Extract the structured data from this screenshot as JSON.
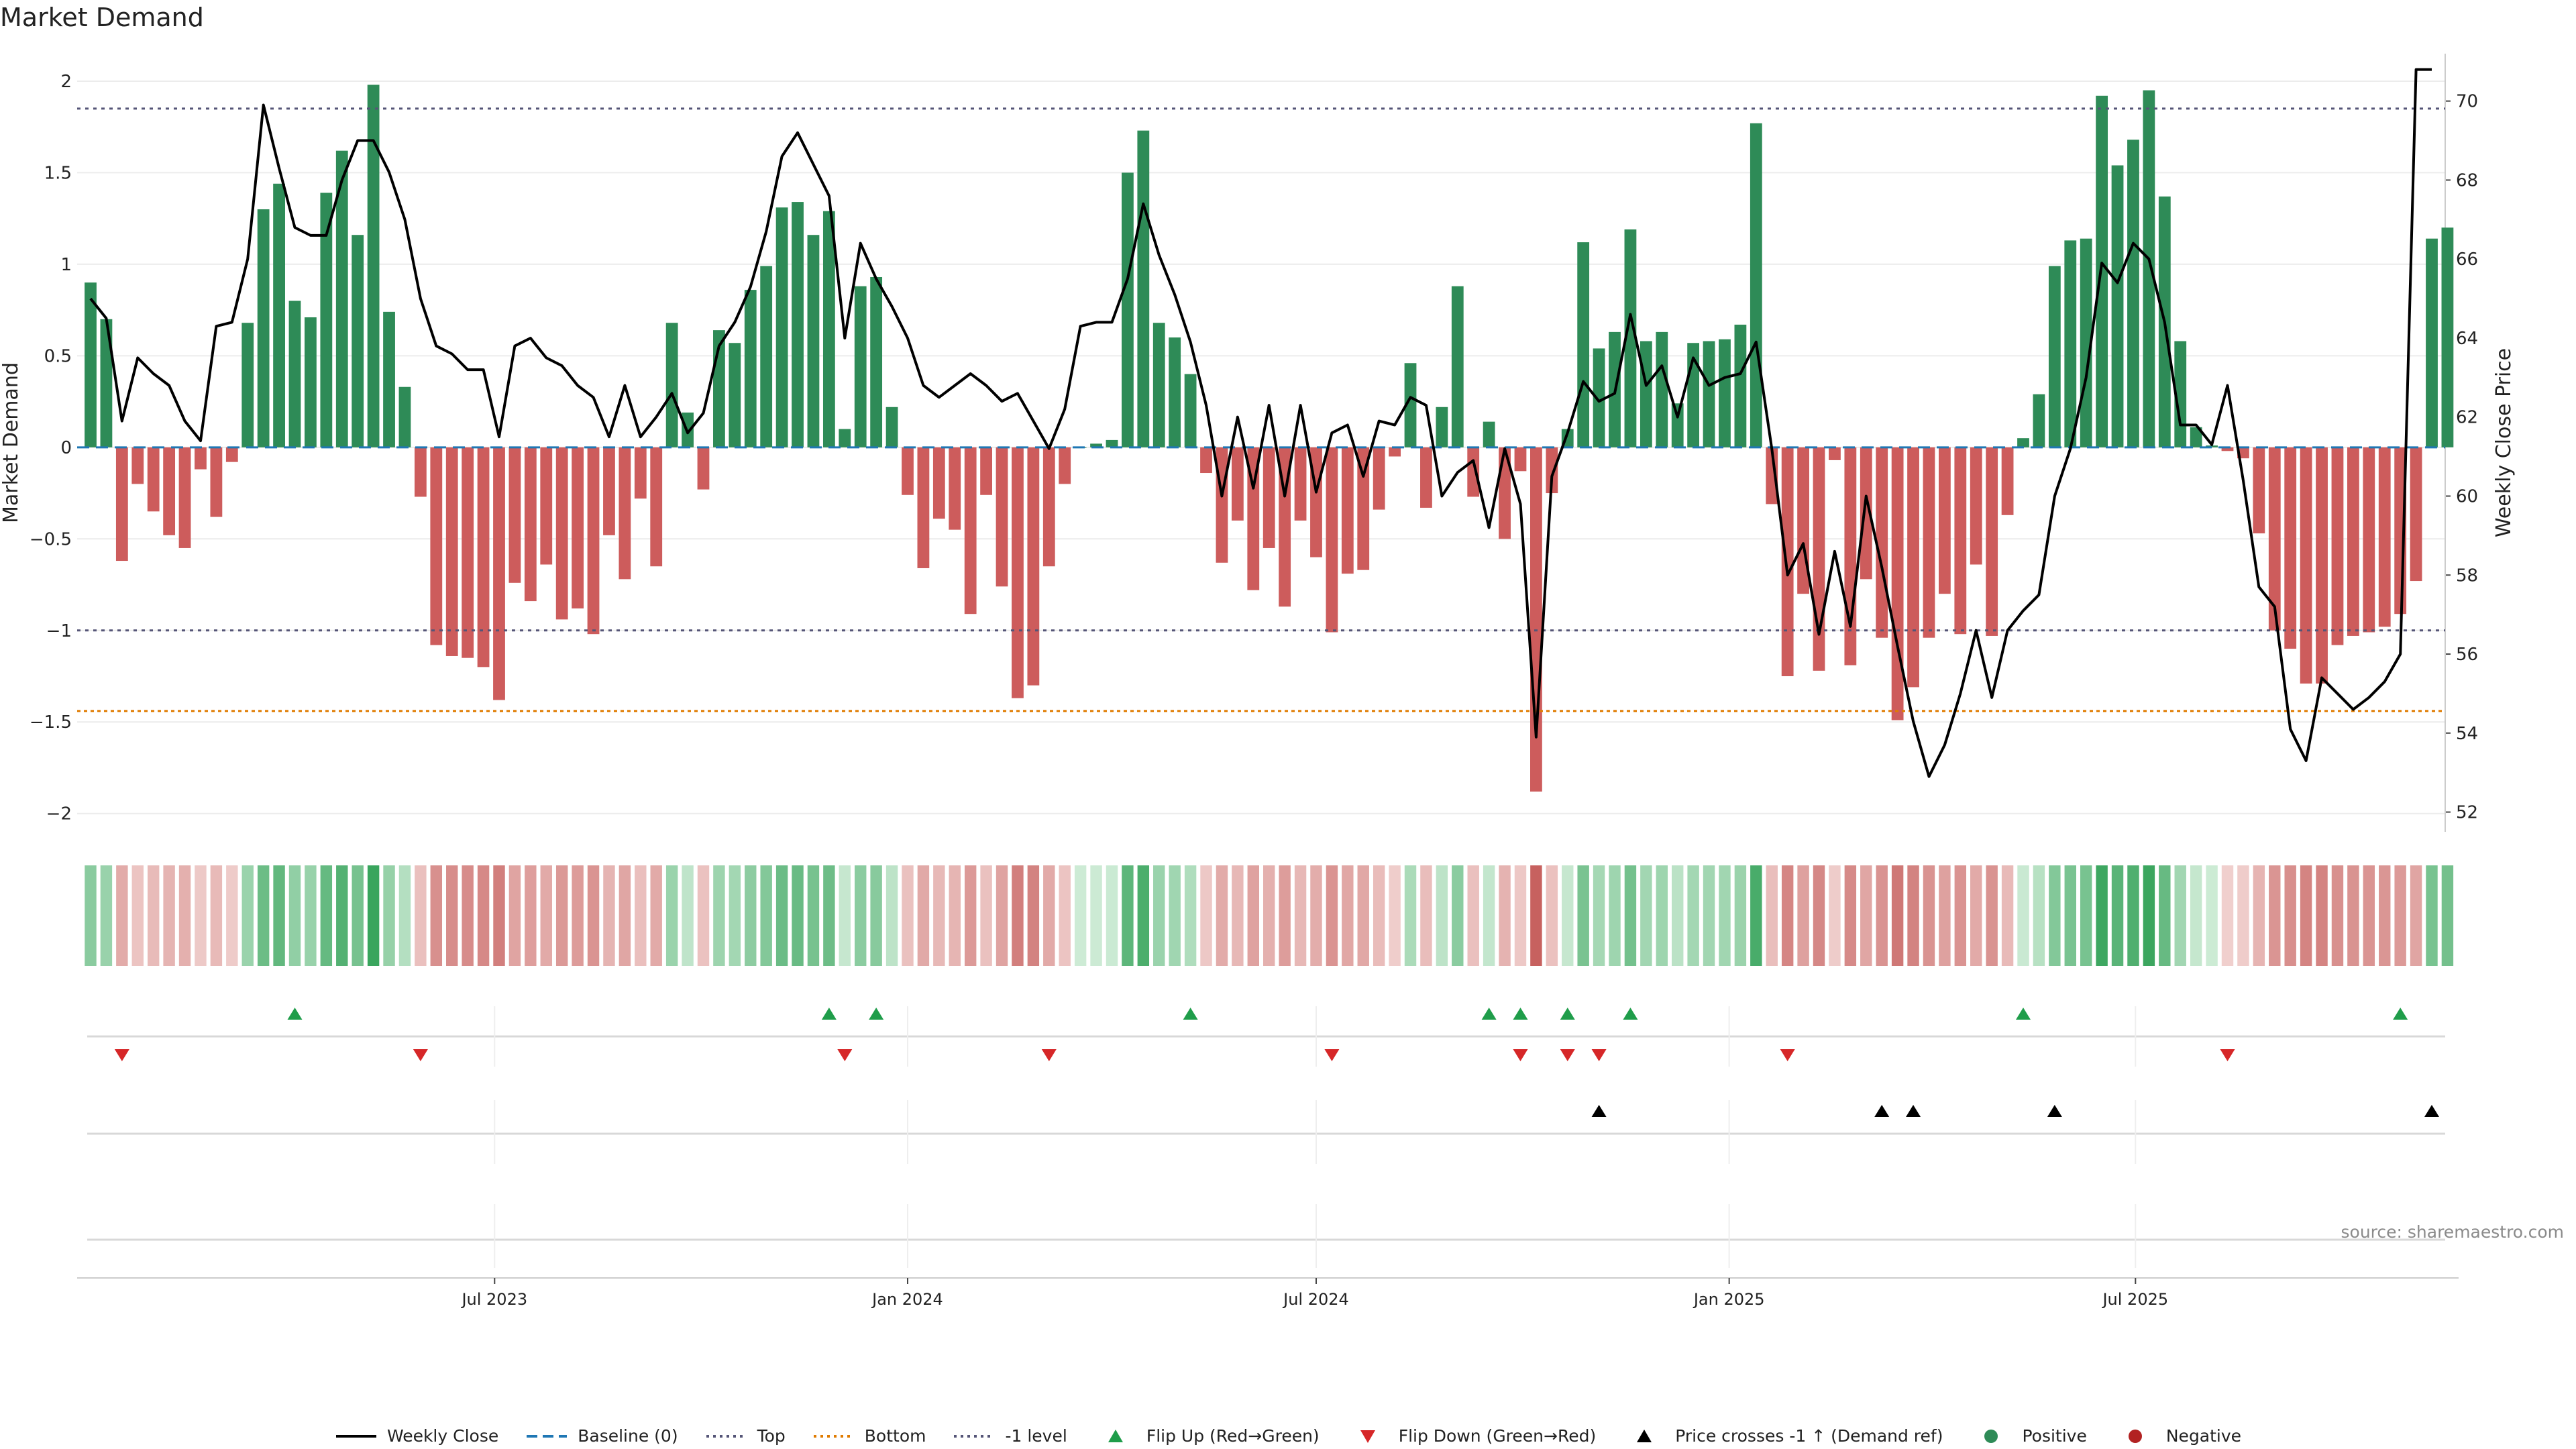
{
  "chart_data": {
    "type": "bar",
    "title": "Market Demand",
    "ylabel": "Market Demand",
    "y2label": "Weekly Close Price",
    "ylim": [
      -2.1,
      2.15
    ],
    "y2lim": [
      51.5,
      71.2
    ],
    "yticks": [
      2,
      1.5,
      1,
      0.5,
      0,
      -0.5,
      -1,
      -1.5,
      -2
    ],
    "ytick_labels": [
      "2",
      "1.5",
      "1",
      "0.5",
      "0",
      "−0.5",
      "−1",
      "−1.5",
      "−2"
    ],
    "y2ticks": [
      52,
      54,
      56,
      58,
      60,
      62,
      64,
      66,
      68,
      70
    ],
    "x_start": "2023-01-02",
    "x_end": "2025-11-10",
    "xticks": [
      {
        "date": "2023-07-01",
        "label": "Jul 2023"
      },
      {
        "date": "2024-01-01",
        "label": "Jan 2024"
      },
      {
        "date": "2024-07-01",
        "label": "Jul 2024"
      },
      {
        "date": "2025-01-01",
        "label": "Jan 2025"
      },
      {
        "date": "2025-07-01",
        "label": "Jul 2025"
      }
    ],
    "reference_lines": {
      "top": 1.85,
      "bottom": -1.44,
      "minus_one": -1.0,
      "baseline": 0
    },
    "colors": {
      "positive": "#2e8b57",
      "negative": "#cd5c5c",
      "price": "#000000",
      "flip_up": "#1f9d4a",
      "flip_down": "#d62728",
      "cross": "#000000",
      "top": "#555577",
      "bottom": "#e07b00",
      "baseline": "#1f77b4"
    },
    "series": [
      {
        "name": "Market Demand",
        "values": [
          0.9,
          0.7,
          -0.62,
          -0.2,
          -0.35,
          -0.48,
          -0.55,
          -0.12,
          -0.38,
          -0.08,
          0.68,
          1.3,
          1.44,
          0.8,
          0.71,
          1.39,
          1.62,
          1.16,
          1.98,
          0.74,
          0.33,
          -0.27,
          -1.08,
          -1.14,
          -1.15,
          -1.2,
          -1.38,
          -0.74,
          -0.84,
          -0.64,
          -0.94,
          -0.88,
          -1.02,
          -0.48,
          -0.72,
          -0.28,
          -0.65,
          0.68,
          0.19,
          -0.23,
          0.64,
          0.57,
          0.86,
          0.99,
          1.31,
          1.34,
          1.16,
          1.29,
          0.1,
          0.88,
          0.93,
          0.22,
          -0.26,
          -0.66,
          -0.39,
          -0.45,
          -0.91,
          -0.26,
          -0.76,
          -1.37,
          -1.3,
          -0.65,
          -0.2,
          0.0,
          0.02,
          0.04,
          1.5,
          1.73,
          0.68,
          0.6,
          0.4,
          -0.14,
          -0.63,
          -0.4,
          -0.78,
          -0.55,
          -0.87,
          -0.4,
          -0.6,
          -1.01,
          -0.69,
          -0.67,
          -0.34,
          -0.05,
          0.46,
          -0.33,
          0.22,
          0.88,
          -0.27,
          0.14,
          -0.5,
          -0.13,
          -1.88,
          -0.25,
          0.1,
          1.12,
          0.54,
          0.63,
          1.19,
          0.58,
          0.63,
          0.24,
          0.57,
          0.58,
          0.59,
          0.67,
          1.77,
          -0.31,
          -1.25,
          -0.8,
          -1.22,
          -0.07,
          -1.19,
          -0.72,
          -1.04,
          -1.49,
          -1.31,
          -1.04,
          -0.8,
          -1.02,
          -0.64,
          -1.03,
          -0.37,
          0.05,
          0.29,
          0.99,
          1.13,
          1.14,
          1.92,
          1.54,
          1.68,
          1.95,
          1.37,
          0.58,
          0.11,
          0.01,
          -0.02,
          -0.06,
          -0.47,
          -1.0,
          -1.1,
          -1.29,
          -1.29,
          -1.08,
          -1.03,
          -1.01,
          -0.98,
          -0.91,
          -0.73,
          1.14,
          1.2
        ]
      },
      {
        "name": "Weekly Close",
        "values": [
          65.0,
          64.5,
          61.9,
          63.5,
          63.1,
          62.8,
          61.9,
          61.4,
          64.3,
          64.4,
          66.0,
          69.9,
          68.3,
          66.8,
          66.6,
          66.6,
          68.0,
          69.0,
          69.0,
          68.2,
          67.0,
          65.0,
          63.8,
          63.6,
          63.2,
          63.2,
          61.5,
          63.8,
          64.0,
          63.5,
          63.3,
          62.8,
          62.5,
          61.5,
          62.8,
          61.5,
          62.0,
          62.6,
          61.6,
          62.1,
          63.8,
          64.4,
          65.3,
          66.7,
          68.6,
          69.2,
          68.4,
          67.6,
          64.0,
          66.4,
          65.5,
          64.8,
          64.0,
          62.8,
          62.5,
          62.8,
          63.1,
          62.8,
          62.4,
          62.6,
          61.9,
          61.2,
          62.2,
          64.3,
          64.4,
          64.4,
          65.5,
          67.4,
          66.1,
          65.1,
          63.9,
          62.3,
          60.0,
          62.0,
          60.2,
          62.3,
          60.0,
          62.3,
          60.1,
          61.6,
          61.8,
          60.5,
          61.9,
          61.8,
          62.5,
          62.3,
          60.0,
          60.6,
          60.9,
          59.2,
          61.2,
          59.8,
          53.9,
          60.5,
          61.6,
          62.9,
          62.4,
          62.6,
          64.6,
          62.8,
          63.3,
          62.0,
          63.5,
          62.8,
          63.0,
          63.1,
          63.9,
          61.2,
          58.0,
          58.8,
          56.5,
          58.6,
          56.7,
          60.0,
          58.2,
          56.2,
          54.3,
          52.9,
          53.7,
          55.0,
          56.6,
          54.9,
          56.6,
          57.1,
          57.5,
          60.0,
          61.2,
          63.0,
          65.9,
          65.4,
          66.4,
          66.0,
          64.4,
          61.8,
          61.8,
          61.3,
          62.8,
          60.4,
          57.7,
          57.2,
          54.1,
          53.3,
          55.4,
          55.0,
          54.6,
          54.9,
          55.3,
          56.0,
          70.8,
          70.8
        ]
      },
      {
        "name": "Flip Up (Red→Green)",
        "dates": [
          "2023-04-03",
          "2023-11-27",
          "2023-12-18",
          "2024-05-06",
          "2024-09-16",
          "2024-09-30",
          "2024-10-21",
          "2024-11-18",
          "2025-05-12",
          "2025-10-27"
        ]
      },
      {
        "name": "Flip Down (Green→Red)",
        "dates": [
          "2023-01-16",
          "2023-05-29",
          "2023-12-04",
          "2024-03-04",
          "2024-07-08",
          "2024-09-30",
          "2024-10-21",
          "2024-11-04",
          "2025-01-27",
          "2025-08-11"
        ]
      },
      {
        "name": "Price crosses -1 ↑ (Demand ref)",
        "dates": [
          "2024-11-04",
          "2025-03-10",
          "2025-03-24",
          "2025-05-26",
          "2025-11-10"
        ]
      }
    ],
    "legend": [
      {
        "label": "Weekly Close",
        "kind": "line",
        "color": "#000000"
      },
      {
        "label": "Baseline (0)",
        "kind": "dash",
        "color": "#1f77b4"
      },
      {
        "label": "Top",
        "kind": "dot",
        "color": "#555577"
      },
      {
        "label": "Bottom",
        "kind": "dot",
        "color": "#e07b00"
      },
      {
        "label": "-1 level",
        "kind": "dot",
        "color": "#555577"
      },
      {
        "label": "Flip Up (Red→Green)",
        "kind": "tri-up",
        "color": "#1f9d4a"
      },
      {
        "label": "Flip Down (Green→Red)",
        "kind": "tri-down",
        "color": "#d62728"
      },
      {
        "label": "Price crosses -1 ↑ (Demand ref)",
        "kind": "tri-up",
        "color": "#000000"
      },
      {
        "label": "Positive",
        "kind": "circle",
        "color": "#2e8b57"
      },
      {
        "label": "Negative",
        "kind": "circle",
        "color": "#b22222"
      }
    ],
    "legend_position": "bottom",
    "grid": true
  },
  "source": "source: sharemaestro.com"
}
